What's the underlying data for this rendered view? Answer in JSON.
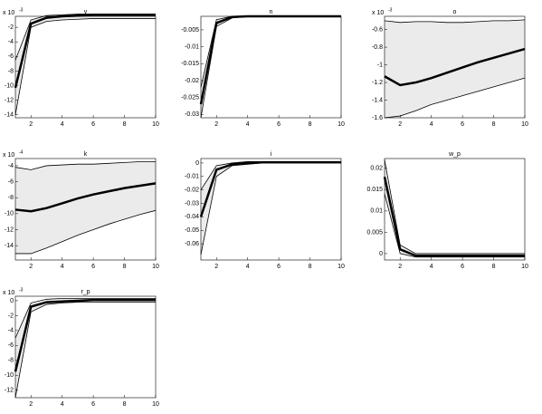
{
  "chart_data": [
    {
      "type": "line",
      "title": "y",
      "exponent": {
        "base": "x 10",
        "power": "-3"
      },
      "x": [
        1,
        2,
        3,
        4,
        5,
        6,
        7,
        8,
        9,
        10
      ],
      "xlim": [
        1,
        10
      ],
      "xticks": [
        2,
        4,
        6,
        8,
        10
      ],
      "ylim": [
        -14.4,
        -0.5
      ],
      "yticks": [
        -2,
        -4,
        -6,
        -8,
        -10,
        -12,
        -14
      ],
      "band_color": "#ebebeb",
      "series": [
        {
          "color": "#000000",
          "width": 0.8,
          "values": [
            -14,
            -2,
            -1.2,
            -1,
            -0.9,
            -0.8,
            -0.8,
            -0.8,
            -0.8,
            -0.8
          ]
        },
        {
          "color": "#000000",
          "width": 2.5,
          "values": [
            -10.3,
            -1.5,
            -0.7,
            -0.5,
            -0.4,
            -0.3,
            -0.3,
            -0.3,
            -0.3,
            -0.3
          ]
        },
        {
          "color": "#000000",
          "width": 0.8,
          "values": [
            -6.5,
            -1,
            -0.4,
            -0.3,
            -0.2,
            -0.2,
            -0.2,
            -0.2,
            -0.2,
            -0.2
          ]
        }
      ]
    },
    {
      "type": "line",
      "title": "n",
      "x": [
        1,
        2,
        3,
        4,
        5,
        6,
        7,
        8,
        9,
        10
      ],
      "xlim": [
        1,
        10
      ],
      "xticks": [
        2,
        4,
        6,
        8,
        10
      ],
      "ylim": [
        -0.031,
        -0.001
      ],
      "yticks": [
        -0.005,
        -0.01,
        -0.015,
        -0.02,
        -0.025,
        -0.03
      ],
      "band_color": "#ebebeb",
      "series": [
        {
          "color": "#000000",
          "width": 0.8,
          "values": [
            -0.031,
            -0.004,
            -0.0015,
            -0.001,
            -0.001,
            -0.001,
            -0.001,
            -0.001,
            -0.001,
            -0.001
          ]
        },
        {
          "color": "#000000",
          "width": 2.5,
          "values": [
            -0.027,
            -0.003,
            -0.0012,
            -0.001,
            -0.001,
            -0.001,
            -0.001,
            -0.001,
            -0.001,
            -0.001
          ]
        },
        {
          "color": "#000000",
          "width": 0.8,
          "values": [
            -0.022,
            -0.002,
            -0.001,
            -0.001,
            -0.001,
            -0.001,
            -0.001,
            -0.001,
            -0.001,
            -0.001
          ]
        }
      ]
    },
    {
      "type": "line",
      "title": "o",
      "exponent": {
        "base": "x 10",
        "power": "-3"
      },
      "x": [
        1,
        2,
        3,
        4,
        5,
        6,
        7,
        8,
        9,
        10
      ],
      "xlim": [
        1,
        10
      ],
      "xticks": [
        2,
        4,
        6,
        8,
        10
      ],
      "ylim": [
        -1.6,
        -0.45
      ],
      "yticks": [
        -0.6,
        -0.8,
        -1,
        -1.2,
        -1.4,
        -1.6
      ],
      "band_color": "#ebebeb",
      "series": [
        {
          "color": "#000000",
          "width": 0.8,
          "values": [
            -1.6,
            -1.58,
            -1.52,
            -1.45,
            -1.4,
            -1.35,
            -1.3,
            -1.25,
            -1.2,
            -1.15
          ]
        },
        {
          "color": "#000000",
          "width": 2.5,
          "values": [
            -1.13,
            -1.23,
            -1.2,
            -1.15,
            -1.09,
            -1.03,
            -0.97,
            -0.92,
            -0.87,
            -0.82
          ]
        },
        {
          "color": "#000000",
          "width": 0.8,
          "values": [
            -0.5,
            -0.52,
            -0.51,
            -0.51,
            -0.52,
            -0.52,
            -0.51,
            -0.5,
            -0.5,
            -0.49
          ]
        }
      ]
    },
    {
      "type": "line",
      "title": "k",
      "exponent": {
        "base": "x 10",
        "power": "-4"
      },
      "x": [
        1,
        2,
        3,
        4,
        5,
        6,
        7,
        8,
        9,
        10
      ],
      "xlim": [
        1,
        10
      ],
      "xticks": [
        2,
        4,
        6,
        8,
        10
      ],
      "ylim": [
        -15.8,
        -3.1
      ],
      "yticks": [
        -4,
        -6,
        -8,
        -10,
        -12,
        -14
      ],
      "band_color": "#ebebeb",
      "series": [
        {
          "color": "#000000",
          "width": 0.8,
          "values": [
            -15,
            -15,
            -14.3,
            -13.5,
            -12.7,
            -12,
            -11.3,
            -10.7,
            -10.1,
            -9.6
          ]
        },
        {
          "color": "#000000",
          "width": 2.5,
          "values": [
            -9.5,
            -9.7,
            -9.3,
            -8.7,
            -8.1,
            -7.6,
            -7.2,
            -6.8,
            -6.5,
            -6.2
          ]
        },
        {
          "color": "#000000",
          "width": 0.8,
          "values": [
            -4.2,
            -4.5,
            -4,
            -3.9,
            -3.8,
            -3.8,
            -3.7,
            -3.6,
            -3.5,
            -3.5
          ]
        }
      ]
    },
    {
      "type": "line",
      "title": "i",
      "x": [
        1,
        2,
        3,
        4,
        5,
        6,
        7,
        8,
        9,
        10
      ],
      "xlim": [
        1,
        10
      ],
      "xticks": [
        2,
        4,
        6,
        8,
        10
      ],
      "ylim": [
        -0.072,
        0.0033
      ],
      "yticks": [
        0,
        -0.01,
        -0.02,
        -0.03,
        -0.04,
        -0.05,
        -0.06
      ],
      "band_color": "#ebebeb",
      "series": [
        {
          "color": "#000000",
          "width": 0.8,
          "values": [
            -0.068,
            -0.01,
            -0.002,
            -0.001,
            0,
            0,
            0,
            0,
            0,
            0
          ]
        },
        {
          "color": "#000000",
          "width": 2.5,
          "values": [
            -0.04,
            -0.005,
            -0.001,
            0,
            0.0005,
            0.0005,
            0.0005,
            0.0005,
            0.0005,
            0.0005
          ]
        },
        {
          "color": "#000000",
          "width": 0.8,
          "values": [
            -0.02,
            -0.002,
            0,
            0.001,
            0.001,
            0.001,
            0.001,
            0.001,
            0.001,
            0.001
          ]
        }
      ]
    },
    {
      "type": "line",
      "title": "w_p",
      "x": [
        1,
        2,
        3,
        4,
        5,
        6,
        7,
        8,
        9,
        10
      ],
      "xlim": [
        1,
        10
      ],
      "xticks": [
        2,
        4,
        6,
        8,
        10
      ],
      "ylim": [
        -0.0015,
        0.0223
      ],
      "yticks": [
        0,
        0.005,
        0.01,
        0.015,
        0.02
      ],
      "band_color": "#ebebeb",
      "series": [
        {
          "color": "#000000",
          "width": 0.8,
          "values": [
            0.014,
            0,
            -0.0008,
            -0.0008,
            -0.0008,
            -0.0008,
            -0.0008,
            -0.0008,
            -0.0008,
            -0.0008
          ]
        },
        {
          "color": "#000000",
          "width": 2.5,
          "values": [
            0.018,
            0.001,
            -0.0005,
            -0.0005,
            -0.0005,
            -0.0005,
            -0.0005,
            -0.0005,
            -0.0005,
            -0.0005
          ]
        },
        {
          "color": "#000000",
          "width": 0.8,
          "values": [
            0.022,
            0.002,
            0,
            0,
            0,
            0,
            0,
            0,
            0,
            0
          ]
        }
      ]
    },
    {
      "type": "line",
      "title": "r_p",
      "exponent": {
        "base": "x 10",
        "power": "-3"
      },
      "x": [
        1,
        2,
        3,
        4,
        5,
        6,
        7,
        8,
        9,
        10
      ],
      "xlim": [
        1,
        10
      ],
      "xticks": [
        2,
        4,
        6,
        8,
        10
      ],
      "ylim": [
        -13,
        0.6
      ],
      "yticks": [
        0,
        -2,
        -4,
        -6,
        -8,
        -10,
        -12
      ],
      "band_color": "#ebebeb",
      "series": [
        {
          "color": "#000000",
          "width": 0.8,
          "values": [
            -13,
            -1.5,
            -0.5,
            -0.3,
            -0.2,
            -0.2,
            -0.2,
            -0.2,
            -0.2,
            -0.2
          ]
        },
        {
          "color": "#000000",
          "width": 2.5,
          "values": [
            -9.5,
            -0.8,
            -0.2,
            -0.1,
            0,
            0.1,
            0.1,
            0.1,
            0.1,
            0.1
          ]
        },
        {
          "color": "#000000",
          "width": 0.8,
          "values": [
            -5,
            -0.3,
            0.2,
            0.3,
            0.3,
            0.3,
            0.3,
            0.3,
            0.3,
            0.3
          ]
        }
      ]
    }
  ]
}
